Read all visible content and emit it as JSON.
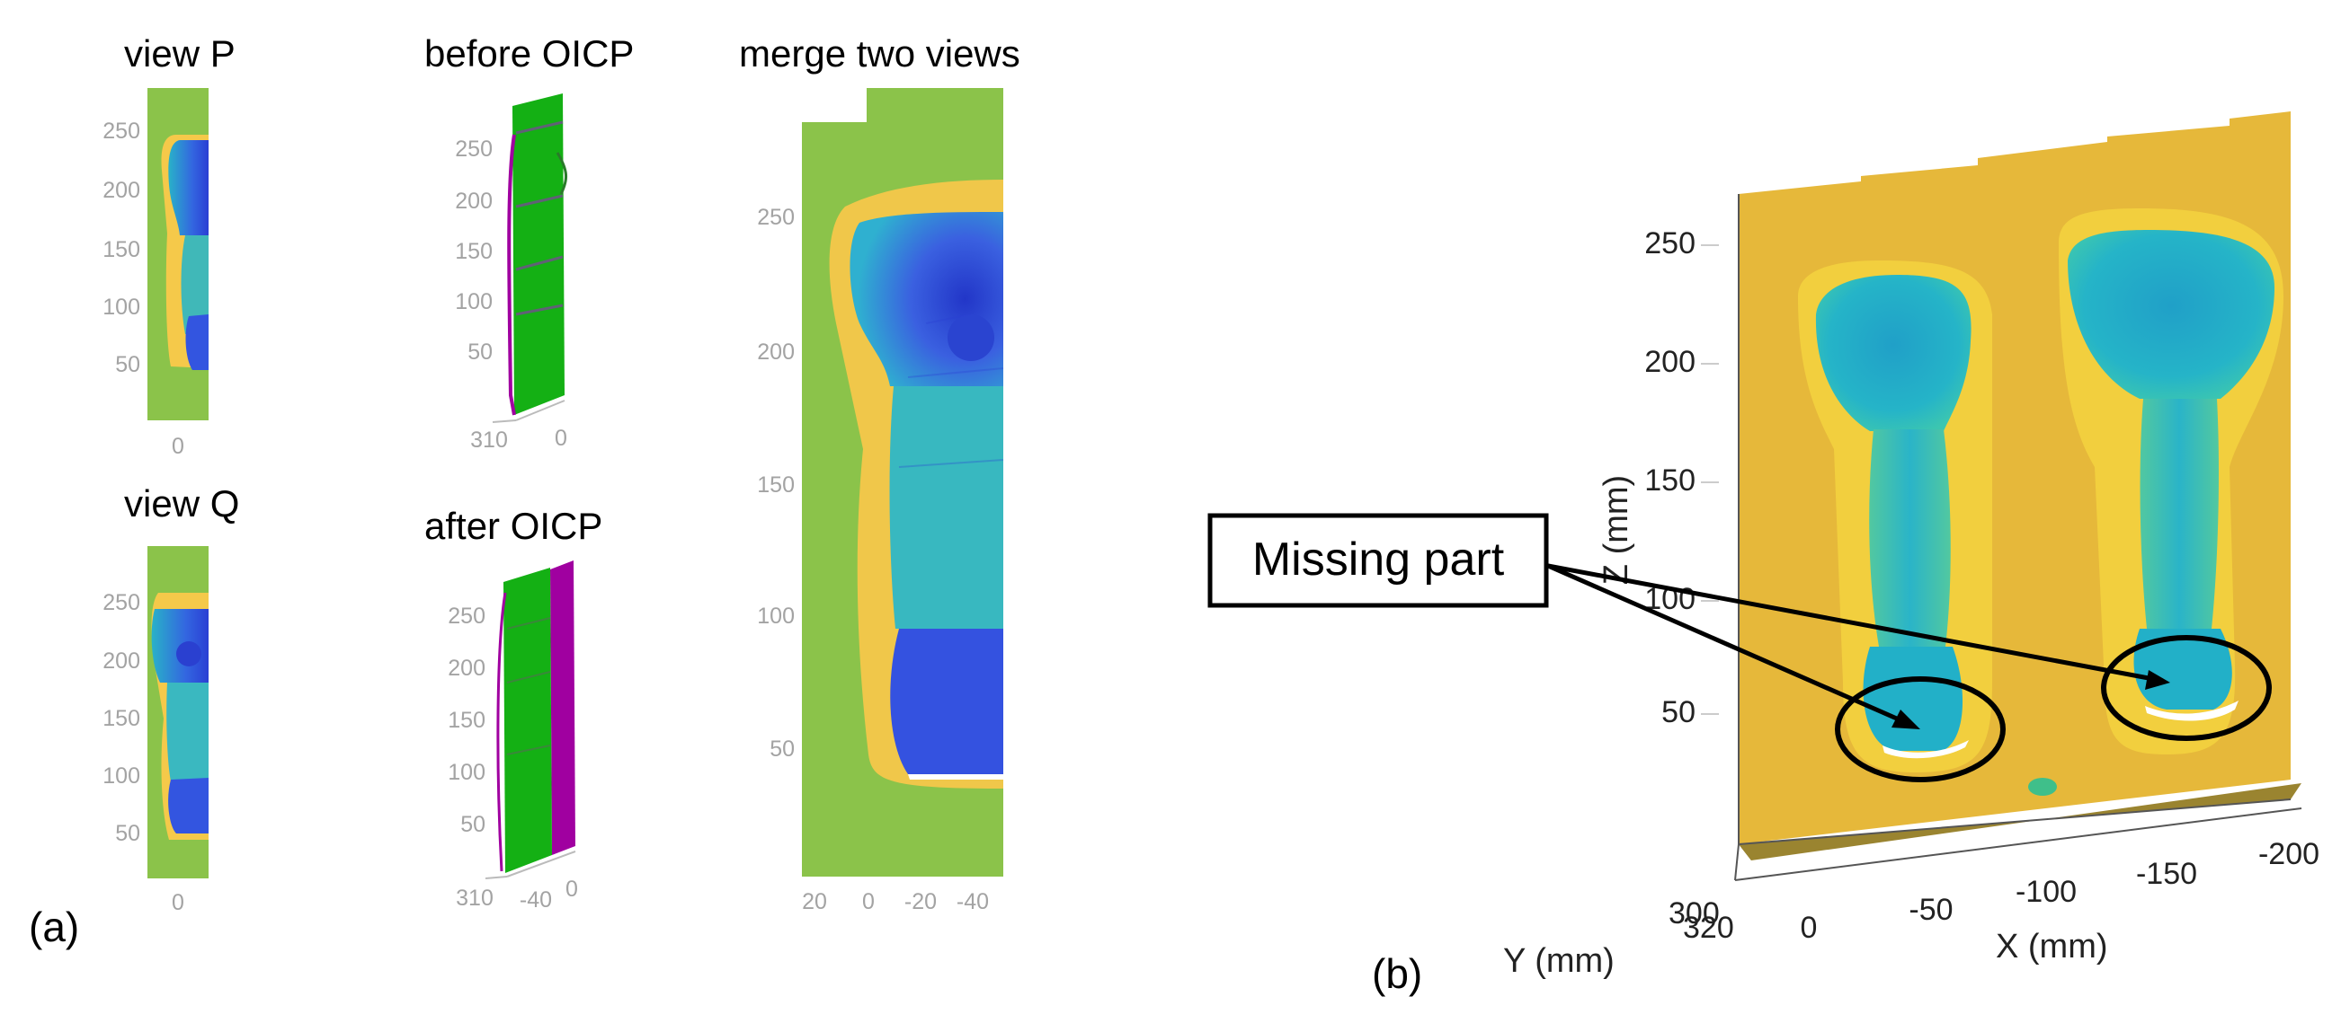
{
  "panel_a": {
    "label": "(a)",
    "view_p": {
      "title": "view P",
      "y_ticks": [
        "250",
        "200",
        "150",
        "100",
        "50"
      ],
      "x_ticks": [
        "0"
      ]
    },
    "view_q": {
      "title": "view Q",
      "y_ticks": [
        "250",
        "200",
        "150",
        "100",
        "50"
      ],
      "x_ticks": [
        "0"
      ]
    },
    "before": {
      "title": "before OICP",
      "y_ticks": [
        "250",
        "200",
        "150",
        "100",
        "50"
      ],
      "x_ticks": [
        "310",
        "0"
      ]
    },
    "after": {
      "title": "after OICP",
      "y_ticks": [
        "250",
        "200",
        "150",
        "100",
        "50"
      ],
      "x_ticks": [
        "310",
        "-40",
        "0"
      ]
    },
    "merge": {
      "title": "merge two views",
      "y_ticks": [
        "250",
        "200",
        "150",
        "100",
        "50"
      ],
      "x_ticks": [
        "20",
        "0",
        "-20",
        "-40"
      ]
    }
  },
  "panel_b": {
    "label": "(b)",
    "z_label": "Z (mm)",
    "x_label": "X (mm)",
    "y_label": "Y (mm)",
    "z_ticks": [
      "250",
      "200",
      "150",
      "100",
      "50"
    ],
    "x_ticks": [
      "0",
      "-50",
      "-100",
      "-150",
      "-200"
    ],
    "y_ticks": [
      "300",
      "320"
    ],
    "callout": "Missing part"
  },
  "colors": {
    "background_surface_a": "#8bc34a",
    "background_surface_b": "#e6b83a",
    "deep": "#3a55e0",
    "mid": "#29a8d8",
    "point_cloud_p": "#14b014",
    "point_cloud_q": "#a000a0"
  }
}
